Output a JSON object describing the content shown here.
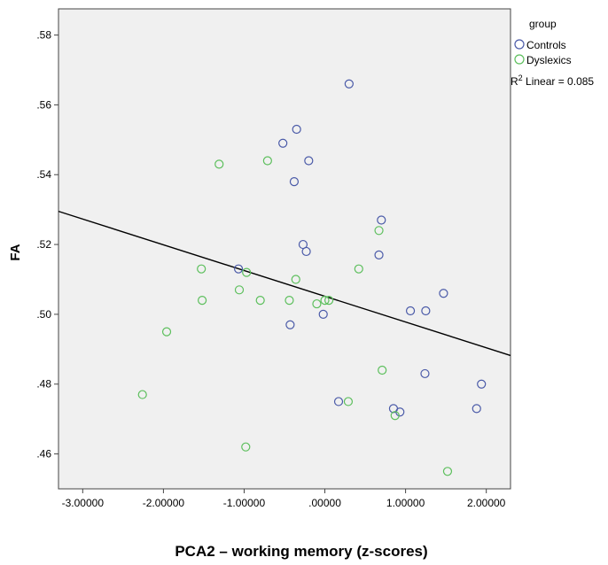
{
  "chart_data": {
    "type": "scatter",
    "title": "",
    "xlabel": "PCA2 – working memory (z-scores)",
    "ylabel": "FA",
    "xlim": [
      -3.3,
      2.3
    ],
    "ylim": [
      0.45,
      0.5875
    ],
    "x_ticks": [
      -3,
      -2,
      -1,
      0,
      1,
      2
    ],
    "x_tick_labels": [
      "-3.00000",
      "-2.00000",
      "-1.00000",
      ".00000",
      "1.00000",
      "2.00000"
    ],
    "y_ticks": [
      0.46,
      0.48,
      0.5,
      0.52,
      0.54,
      0.56,
      0.58
    ],
    "y_tick_labels": [
      ".46",
      ".48",
      ".50",
      ".52",
      ".54",
      ".56",
      ".58"
    ],
    "grid": false,
    "legend": {
      "title": "group",
      "placement": "top-right-outside",
      "fit_label_prefix": "R",
      "fit_label_sup": "2",
      "fit_label_suffix": " Linear = 0.085"
    },
    "series": [
      {
        "name": "Controls",
        "color": "#4a5aa8",
        "x": [
          0.3,
          -0.35,
          -0.52,
          -0.2,
          -0.38,
          -0.27,
          -0.23,
          -1.07,
          -0.43,
          -0.02,
          0.7,
          0.67,
          1.47,
          1.06,
          1.25,
          1.24,
          1.94,
          1.88,
          0.17,
          0.85,
          0.93
        ],
        "y": [
          0.566,
          0.553,
          0.549,
          0.544,
          0.538,
          0.52,
          0.518,
          0.513,
          0.497,
          0.5,
          0.527,
          0.517,
          0.506,
          0.501,
          0.501,
          0.483,
          0.48,
          0.473,
          0.475,
          0.473,
          0.472
        ]
      },
      {
        "name": "Dyslexics",
        "color": "#5cbf5c",
        "x": [
          -1.31,
          -0.71,
          -1.53,
          -0.97,
          -1.06,
          -1.52,
          -0.8,
          -0.44,
          -0.36,
          -0.1,
          0.0,
          0.05,
          0.42,
          0.67,
          0.71,
          0.29,
          0.87,
          -1.96,
          -2.26,
          -0.98,
          1.52
        ],
        "y": [
          0.543,
          0.544,
          0.513,
          0.512,
          0.507,
          0.504,
          0.504,
          0.504,
          0.51,
          0.503,
          0.504,
          0.504,
          0.513,
          0.524,
          0.484,
          0.475,
          0.471,
          0.495,
          0.477,
          0.462,
          0.455
        ]
      }
    ],
    "fit_line": {
      "x": [
        -3.3,
        2.3
      ],
      "y": [
        0.5295,
        0.4882
      ]
    }
  }
}
